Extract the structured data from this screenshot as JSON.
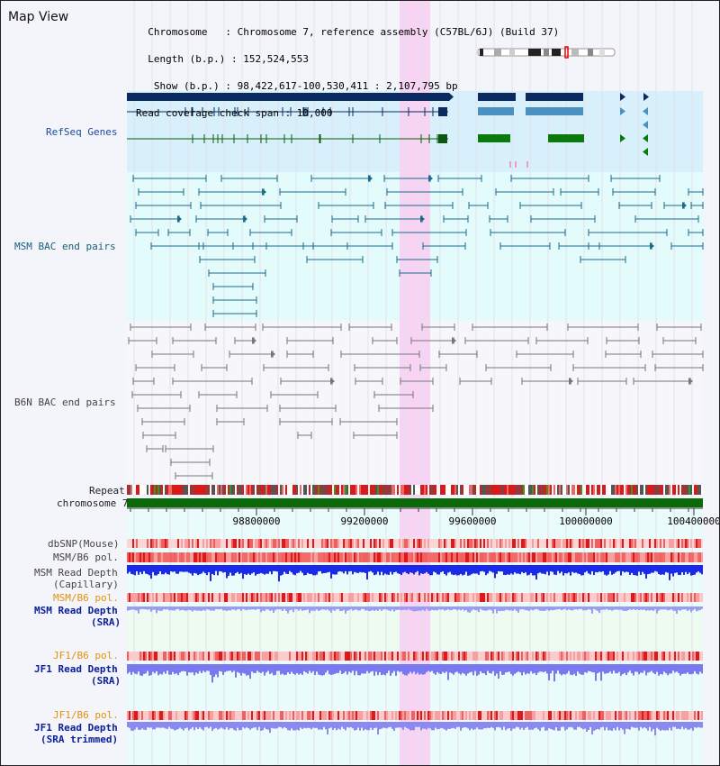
{
  "header": {
    "title": "Map View",
    "info_lines": [
      "  Chromosome   : Chromosome 7, reference assembly (C57BL/6J) (Build 37)",
      "  Length (b.p.) : 152,524,553",
      "   Show (b.p.) : 98,422,617-100,530,411 : 2,107,795 bp",
      "Read coverage check span : 10,000"
    ]
  },
  "tracks": {
    "refseq": "RefSeq Genes",
    "msm_bac": "MSM BAC end pairs",
    "b6n_bac": "B6N BAC end pairs",
    "repeat": "Repeat",
    "chromosome": "chromosome 7",
    "dbsnp": "dbSNP(Mouse)",
    "msm_b6_pol_1": "MSM/B6 pol.",
    "msm_read_depth_cap_1": "MSM Read Depth",
    "msm_read_depth_cap_2": "(Capillary)",
    "msm_b6_pol_2": "MSM/B6 pol.",
    "msm_read_depth_sra_1": "MSM Read Depth",
    "msm_read_depth_sra_2": "(SRA)",
    "jf1_b6_pol_1": "JF1/B6 pol.",
    "jf1_read_depth_sra_1": "JF1 Read Depth",
    "jf1_read_depth_sra_2": "(SRA)",
    "jf1_b6_pol_2": "JF1/B6 pol.",
    "jf1_read_depth_trim_1": "JF1 Read Depth",
    "jf1_read_depth_trim_2": "(SRA trimmed)"
  },
  "axis": {
    "ticks": [
      "98800000",
      "99200000",
      "99600000",
      "100000000",
      "100400000"
    ]
  },
  "colors": {
    "highlight": "#f7d4f3",
    "refseq_bg": "#d8f0fb",
    "navy": "#0b2a5f",
    "chrom_green": "#0a6a0a",
    "depth_blue": "#1a2ae8",
    "depth_violet": "#7878f0"
  }
}
